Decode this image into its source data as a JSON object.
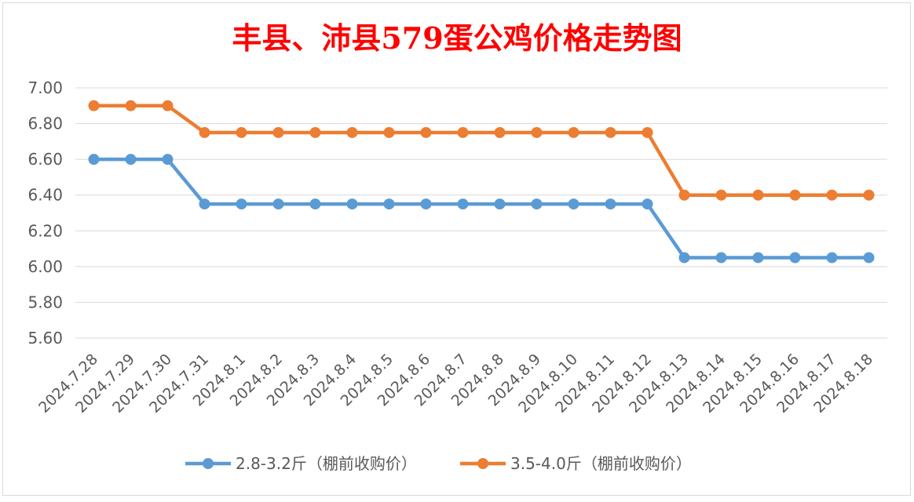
{
  "chart_data": {
    "type": "line",
    "title": "丰县、沛县579蛋公鸡价格走势图",
    "xlabel": "",
    "ylabel": "",
    "ylim": [
      5.6,
      7.0
    ],
    "yticks": [
      "7.00",
      "6.80",
      "6.60",
      "6.40",
      "6.20",
      "6.00",
      "5.80",
      "5.60"
    ],
    "categories": [
      "2024.7.28",
      "2024.7.29",
      "2024.7.30",
      "2024.7.31",
      "2024.8.1",
      "2024.8.2",
      "2024.8.3",
      "2024.8.4",
      "2024.8.5",
      "2024.8.6",
      "2024.8.7",
      "2024.8.8",
      "2024.8.9",
      "2024.8.10",
      "2024.8.11",
      "2024.8.12",
      "2024.8.13",
      "2024.8.14",
      "2024.8.15",
      "2024.8.16",
      "2024.8.17",
      "2024.8.18"
    ],
    "series": [
      {
        "name": "2.8-3.2斤（棚前收购价）",
        "color": "#5B9BD5",
        "values": [
          6.6,
          6.6,
          6.6,
          6.35,
          6.35,
          6.35,
          6.35,
          6.35,
          6.35,
          6.35,
          6.35,
          6.35,
          6.35,
          6.35,
          6.35,
          6.35,
          6.05,
          6.05,
          6.05,
          6.05,
          6.05,
          6.05
        ]
      },
      {
        "name": "3.5-4.0斤（棚前收购价）",
        "color": "#ED7D31",
        "values": [
          6.9,
          6.9,
          6.9,
          6.75,
          6.75,
          6.75,
          6.75,
          6.75,
          6.75,
          6.75,
          6.75,
          6.75,
          6.75,
          6.75,
          6.75,
          6.75,
          6.4,
          6.4,
          6.4,
          6.4,
          6.4,
          6.4
        ]
      }
    ],
    "grid": true,
    "legend": "bottom",
    "title_color": "#FF0000"
  }
}
